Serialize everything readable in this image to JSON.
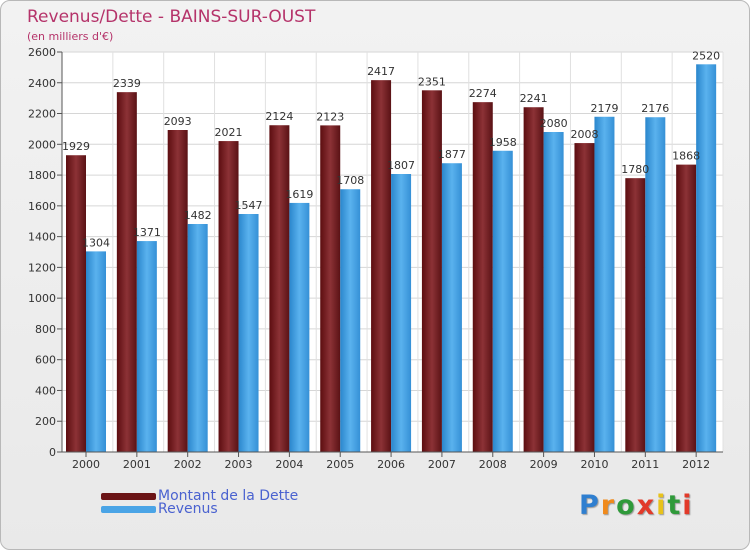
{
  "title": "Revenus/Dette - BAINS-SUR-OUST",
  "subtitle": "(en milliers d'€)",
  "colors": {
    "dette": "#7a2428",
    "revenus": "#4aa4e6",
    "title": "#b5336a"
  },
  "legend": [
    {
      "label": "Montant de la Dette",
      "color": "#6b1416"
    },
    {
      "label": "Revenus",
      "color": "#4aa4e6"
    }
  ],
  "logo": {
    "text": "Proxiti"
  },
  "chart_data": {
    "type": "bar",
    "title": "Revenus/Dette - BAINS-SUR-OUST",
    "ylabel": "(en milliers d'€)",
    "xlabel": "",
    "ylim": [
      0,
      2600
    ],
    "ytick_step": 200,
    "grid": true,
    "categories": [
      "2000",
      "2001",
      "2002",
      "2003",
      "2004",
      "2005",
      "2006",
      "2007",
      "2008",
      "2009",
      "2010",
      "2011",
      "2012"
    ],
    "series": [
      {
        "name": "Montant de la Dette",
        "values": [
          1929,
          2339,
          2093,
          2021,
          2124,
          2123,
          2417,
          2351,
          2274,
          2241,
          2008,
          1780,
          1868
        ]
      },
      {
        "name": "Revenus",
        "values": [
          1304,
          1371,
          1482,
          1547,
          1619,
          1708,
          1807,
          1877,
          1958,
          2080,
          2179,
          2176,
          2520
        ]
      }
    ]
  }
}
